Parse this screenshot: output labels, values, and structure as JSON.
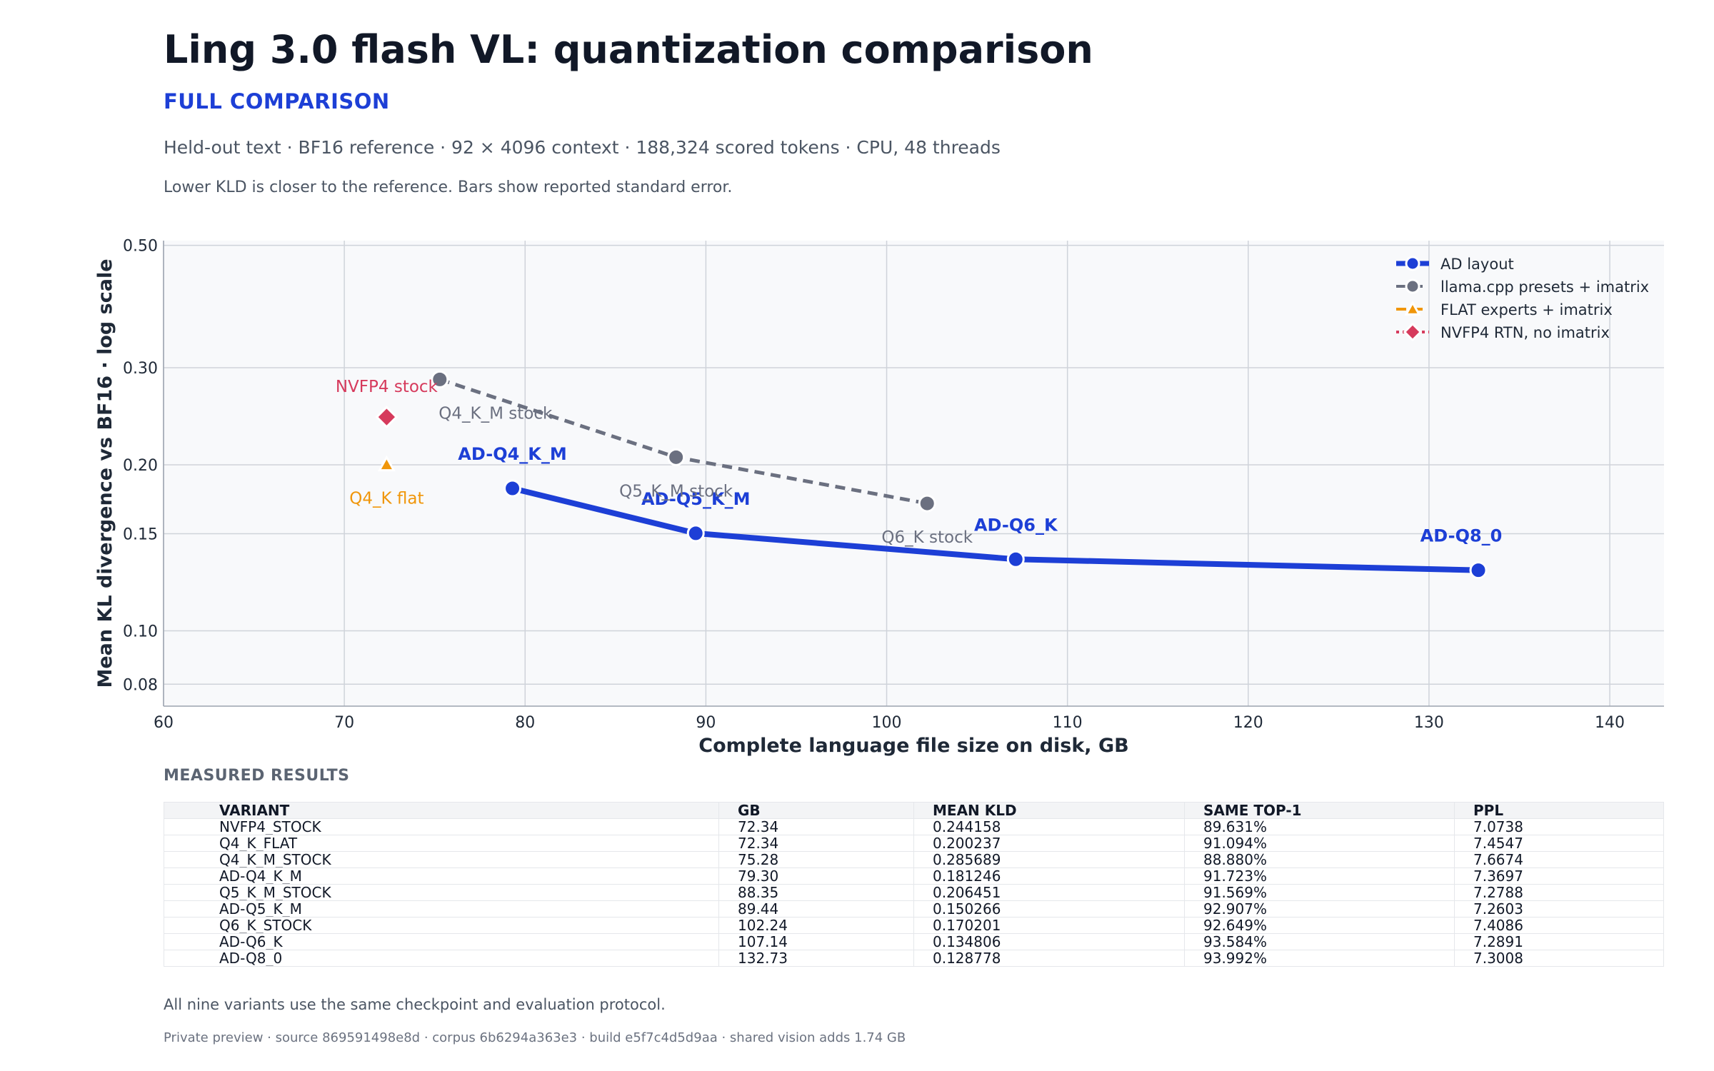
{
  "title": "Ling 3.0 flash VL: quantization comparison",
  "section_label": "FULL COMPARISON",
  "subtitle": "Held-out text · BF16 reference · 92 × 4096 context · 188,324 scored tokens · CPU, 48 threads",
  "note": "Lower KLD is closer to the reference. Bars show reported standard error.",
  "chart_data": {
    "type": "scatter",
    "xlabel": "Complete language file size on disk, GB",
    "ylabel": "Mean KL divergence vs BF16 · log scale",
    "xlim": [
      60,
      143
    ],
    "ylim": [
      0.073,
      0.51
    ],
    "y_scale": "log",
    "x_ticks": [
      "60",
      "70",
      "80",
      "90",
      "100",
      "110",
      "120",
      "130",
      "140"
    ],
    "y_ticks": [
      "0.08",
      "0.10",
      "0.15",
      "0.20",
      "0.30",
      "0.50"
    ],
    "grid": true,
    "legend_position": "top-right",
    "series": [
      {
        "name": "AD layout",
        "color": "#1d3fd6",
        "line": "solid",
        "marker": "circle",
        "points": [
          {
            "x": 79.3,
            "y": 0.181246,
            "label": "AD-Q4_K_M"
          },
          {
            "x": 89.44,
            "y": 0.150266,
            "label": "AD-Q5_K_M"
          },
          {
            "x": 107.14,
            "y": 0.134806,
            "label": "AD-Q6_K"
          },
          {
            "x": 132.73,
            "y": 0.128778,
            "label": "AD-Q8_0"
          }
        ]
      },
      {
        "name": "llama.cpp presets + imatrix",
        "color": "#6b7080",
        "line": "dashed",
        "marker": "circle",
        "points": [
          {
            "x": 75.28,
            "y": 0.285689,
            "label": "Q4_K_M stock"
          },
          {
            "x": 88.35,
            "y": 0.206451,
            "label": "Q5_K_M stock"
          },
          {
            "x": 102.24,
            "y": 0.170201,
            "label": "Q6_K stock"
          }
        ]
      },
      {
        "name": "FLAT experts + imatrix",
        "color": "#f0960a",
        "line": "dashed",
        "marker": "triangle",
        "points": [
          {
            "x": 72.34,
            "y": 0.200237,
            "label": "Q4_K flat"
          }
        ]
      },
      {
        "name": "NVFP4 RTN, no imatrix",
        "color": "#d63a5c",
        "line": "dotted",
        "marker": "diamond",
        "points": [
          {
            "x": 72.34,
            "y": 0.244158,
            "label": "NVFP4 stock"
          }
        ]
      }
    ]
  },
  "results": {
    "heading": "MEASURED RESULTS",
    "columns": [
      "VARIANT",
      "GB",
      "MEAN KLD",
      "SAME TOP-1",
      "PPL"
    ],
    "rows": [
      [
        "NVFP4_STOCK",
        "72.34",
        "0.244158",
        "89.631%",
        "7.0738"
      ],
      [
        "Q4_K_FLAT",
        "72.34",
        "0.200237",
        "91.094%",
        "7.4547"
      ],
      [
        "Q4_K_M_STOCK",
        "75.28",
        "0.285689",
        "88.880%",
        "7.6674"
      ],
      [
        "AD-Q4_K_M",
        "79.30",
        "0.181246",
        "91.723%",
        "7.3697"
      ],
      [
        "Q5_K_M_STOCK",
        "88.35",
        "0.206451",
        "91.569%",
        "7.2788"
      ],
      [
        "AD-Q5_K_M",
        "89.44",
        "0.150266",
        "92.907%",
        "7.2603"
      ],
      [
        "Q6_K_STOCK",
        "102.24",
        "0.170201",
        "92.649%",
        "7.4086"
      ],
      [
        "AD-Q6_K",
        "107.14",
        "0.134806",
        "93.584%",
        "7.2891"
      ],
      [
        "AD-Q8_0",
        "132.73",
        "0.128778",
        "93.992%",
        "7.3008"
      ]
    ]
  },
  "footnote": "All nine variants use the same checkpoint and evaluation protocol.",
  "preview": "Private preview · source 869591498e8d · corpus 6b6294a363e3 · build e5f7c4d5d9aa · shared vision adds 1.74 GB"
}
